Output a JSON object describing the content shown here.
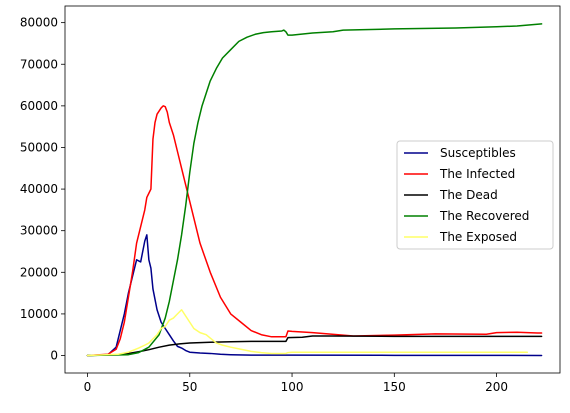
{
  "chart_data": {
    "type": "line",
    "title": "",
    "xlabel": "",
    "ylabel": "",
    "xlim": [
      -11,
      231
    ],
    "ylim": [
      -4200,
      84000
    ],
    "grid": false,
    "legend_placement": "center-right",
    "x_ticks": [
      0,
      50,
      100,
      150,
      200
    ],
    "y_ticks": [
      0,
      10000,
      20000,
      30000,
      40000,
      50000,
      60000,
      70000,
      80000
    ],
    "x_tick_labels": [
      "0",
      "50",
      "100",
      "150",
      "200"
    ],
    "y_tick_labels": [
      "0",
      "10000",
      "20000",
      "30000",
      "40000",
      "50000",
      "60000",
      "70000",
      "80000"
    ],
    "series": [
      {
        "name": "Susceptibles",
        "color": "#00008b",
        "points": [
          [
            0,
            0
          ],
          [
            10,
            200
          ],
          [
            14,
            2000
          ],
          [
            16,
            6000
          ],
          [
            18,
            10000
          ],
          [
            20,
            15000
          ],
          [
            22,
            19000
          ],
          [
            24,
            23000
          ],
          [
            26,
            22500
          ],
          [
            28,
            27500
          ],
          [
            29,
            29000
          ],
          [
            30,
            23000
          ],
          [
            31,
            21000
          ],
          [
            32,
            16000
          ],
          [
            34,
            11000
          ],
          [
            36,
            8000
          ],
          [
            38,
            6500
          ],
          [
            40,
            5000
          ],
          [
            42,
            3500
          ],
          [
            44,
            2200
          ],
          [
            46,
            1800
          ],
          [
            48,
            1200
          ],
          [
            50,
            800
          ],
          [
            55,
            600
          ],
          [
            60,
            500
          ],
          [
            65,
            300
          ],
          [
            70,
            200
          ],
          [
            80,
            100
          ],
          [
            100,
            100
          ],
          [
            150,
            50
          ],
          [
            200,
            50
          ],
          [
            222,
            0
          ]
        ]
      },
      {
        "name": "The Infected",
        "color": "#ff0000",
        "points": [
          [
            0,
            0
          ],
          [
            10,
            300
          ],
          [
            14,
            1500
          ],
          [
            16,
            4000
          ],
          [
            18,
            8000
          ],
          [
            20,
            14000
          ],
          [
            22,
            20000
          ],
          [
            24,
            27000
          ],
          [
            26,
            31000
          ],
          [
            28,
            35000
          ],
          [
            29,
            38000
          ],
          [
            30,
            39000
          ],
          [
            31,
            40000
          ],
          [
            32,
            52000
          ],
          [
            33,
            56000
          ],
          [
            34,
            58000
          ],
          [
            36,
            59500
          ],
          [
            37,
            60000
          ],
          [
            38,
            59800
          ],
          [
            39,
            58500
          ],
          [
            40,
            56000
          ],
          [
            42,
            53000
          ],
          [
            44,
            49000
          ],
          [
            46,
            45000
          ],
          [
            48,
            41000
          ],
          [
            50,
            37000
          ],
          [
            52,
            33000
          ],
          [
            55,
            27000
          ],
          [
            60,
            20000
          ],
          [
            65,
            14000
          ],
          [
            70,
            10000
          ],
          [
            75,
            8000
          ],
          [
            80,
            6000
          ],
          [
            85,
            5000
          ],
          [
            90,
            4500
          ],
          [
            97,
            4500
          ],
          [
            98,
            5900
          ],
          [
            100,
            5800
          ],
          [
            110,
            5500
          ],
          [
            130,
            4700
          ],
          [
            150,
            4900
          ],
          [
            170,
            5200
          ],
          [
            195,
            5100
          ],
          [
            200,
            5500
          ],
          [
            210,
            5600
          ],
          [
            220,
            5400
          ],
          [
            222,
            5400
          ]
        ]
      },
      {
        "name": "The Dead",
        "color": "#000000",
        "points": [
          [
            0,
            0
          ],
          [
            15,
            200
          ],
          [
            20,
            500
          ],
          [
            25,
            900
          ],
          [
            30,
            1400
          ],
          [
            35,
            2000
          ],
          [
            40,
            2500
          ],
          [
            45,
            2800
          ],
          [
            50,
            3000
          ],
          [
            60,
            3200
          ],
          [
            70,
            3300
          ],
          [
            80,
            3400
          ],
          [
            97,
            3400
          ],
          [
            98,
            4300
          ],
          [
            105,
            4400
          ],
          [
            110,
            4700
          ],
          [
            120,
            4700
          ],
          [
            150,
            4600
          ],
          [
            200,
            4600
          ],
          [
            222,
            4600
          ]
        ]
      },
      {
        "name": "The Recovered",
        "color": "#008000",
        "points": [
          [
            0,
            0
          ],
          [
            20,
            200
          ],
          [
            25,
            700
          ],
          [
            30,
            2000
          ],
          [
            35,
            5000
          ],
          [
            38,
            9000
          ],
          [
            40,
            13000
          ],
          [
            42,
            18000
          ],
          [
            44,
            23000
          ],
          [
            46,
            29000
          ],
          [
            48,
            36000
          ],
          [
            50,
            44000
          ],
          [
            52,
            51000
          ],
          [
            54,
            56000
          ],
          [
            56,
            60000
          ],
          [
            58,
            63000
          ],
          [
            60,
            66000
          ],
          [
            63,
            69000
          ],
          [
            66,
            71500
          ],
          [
            70,
            73500
          ],
          [
            74,
            75500
          ],
          [
            78,
            76500
          ],
          [
            82,
            77200
          ],
          [
            86,
            77600
          ],
          [
            90,
            77800
          ],
          [
            95,
            78000
          ],
          [
            96,
            78200
          ],
          [
            97,
            77800
          ],
          [
            98,
            77000
          ],
          [
            100,
            77000
          ],
          [
            110,
            77500
          ],
          [
            120,
            77800
          ],
          [
            125,
            78200
          ],
          [
            150,
            78500
          ],
          [
            180,
            78700
          ],
          [
            200,
            79000
          ],
          [
            210,
            79200
          ],
          [
            222,
            79700
          ]
        ]
      },
      {
        "name": "The Exposed",
        "color": "#ffff66",
        "points": [
          [
            0,
            0
          ],
          [
            15,
            300
          ],
          [
            20,
            800
          ],
          [
            25,
            1800
          ],
          [
            28,
            2500
          ],
          [
            30,
            3000
          ],
          [
            32,
            4000
          ],
          [
            34,
            5000
          ],
          [
            36,
            6500
          ],
          [
            38,
            7000
          ],
          [
            40,
            8500
          ],
          [
            42,
            9000
          ],
          [
            44,
            10000
          ],
          [
            46,
            11000
          ],
          [
            48,
            9500
          ],
          [
            50,
            8000
          ],
          [
            52,
            6500
          ],
          [
            55,
            5500
          ],
          [
            58,
            5000
          ],
          [
            60,
            4200
          ],
          [
            63,
            3000
          ],
          [
            66,
            2500
          ],
          [
            70,
            2000
          ],
          [
            75,
            1500
          ],
          [
            80,
            1000
          ],
          [
            85,
            700
          ],
          [
            90,
            500
          ],
          [
            97,
            500
          ],
          [
            98,
            700
          ],
          [
            100,
            800
          ],
          [
            150,
            800
          ],
          [
            200,
            800
          ],
          [
            215,
            800
          ]
        ]
      }
    ]
  }
}
